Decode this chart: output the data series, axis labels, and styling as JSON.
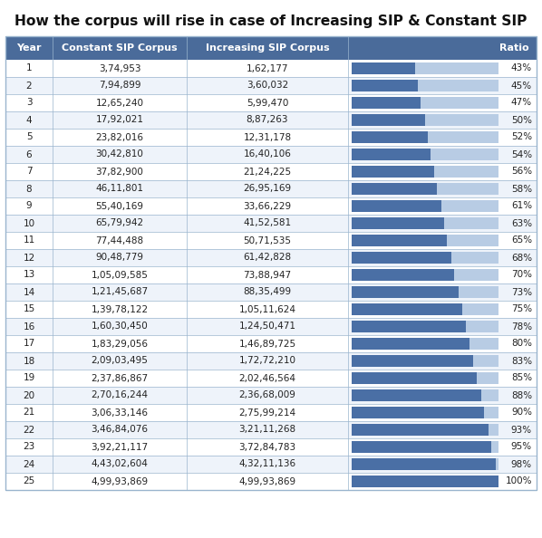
{
  "title": "How the corpus will rise in case of Increasing SIP & Constant SIP",
  "headers": [
    "Year",
    "Constant SIP Corpus",
    "Increasing SIP Corpus",
    "Ratio"
  ],
  "rows": [
    [
      1,
      "3,74,953",
      "1,62,177",
      43
    ],
    [
      2,
      "7,94,899",
      "3,60,032",
      45
    ],
    [
      3,
      "12,65,240",
      "5,99,470",
      47
    ],
    [
      4,
      "17,92,021",
      "8,87,263",
      50
    ],
    [
      5,
      "23,82,016",
      "12,31,178",
      52
    ],
    [
      6,
      "30,42,810",
      "16,40,106",
      54
    ],
    [
      7,
      "37,82,900",
      "21,24,225",
      56
    ],
    [
      8,
      "46,11,801",
      "26,95,169",
      58
    ],
    [
      9,
      "55,40,169",
      "33,66,229",
      61
    ],
    [
      10,
      "65,79,942",
      "41,52,581",
      63
    ],
    [
      11,
      "77,44,488",
      "50,71,535",
      65
    ],
    [
      12,
      "90,48,779",
      "61,42,828",
      68
    ],
    [
      13,
      "1,05,09,585",
      "73,88,947",
      70
    ],
    [
      14,
      "1,21,45,687",
      "88,35,499",
      73
    ],
    [
      15,
      "1,39,78,122",
      "1,05,11,624",
      75
    ],
    [
      16,
      "1,60,30,450",
      "1,24,50,471",
      78
    ],
    [
      17,
      "1,83,29,056",
      "1,46,89,725",
      80
    ],
    [
      18,
      "2,09,03,495",
      "1,72,72,210",
      83
    ],
    [
      19,
      "2,37,86,867",
      "2,02,46,564",
      85
    ],
    [
      20,
      "2,70,16,244",
      "2,36,68,009",
      88
    ],
    [
      21,
      "3,06,33,146",
      "2,75,99,214",
      90
    ],
    [
      22,
      "3,46,84,076",
      "3,21,11,268",
      93
    ],
    [
      23,
      "3,92,21,117",
      "3,72,84,783",
      95
    ],
    [
      24,
      "4,43,02,604",
      "4,32,11,136",
      98
    ],
    [
      25,
      "4,99,93,869",
      "4,99,93,869",
      100
    ]
  ],
  "header_bg": "#4A6B9A",
  "header_text": "#FFFFFF",
  "row_bg_even": "#FFFFFF",
  "row_bg_odd": "#EEF3FA",
  "row_text": "#222222",
  "border_color": "#9AB5CE",
  "bar_color_dark": "#4A6FA5",
  "bar_color_light": "#B8CCE4",
  "title_color": "#111111",
  "fig_width": 5.98,
  "fig_height": 5.94,
  "dpi": 100
}
